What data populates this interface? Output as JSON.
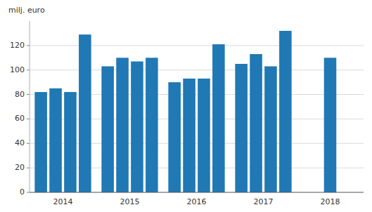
{
  "chart_data": {
    "type": "bar",
    "ylabel": "milj. euro",
    "categories": [
      "2014",
      "2015",
      "2016",
      "2017",
      "2018"
    ],
    "series": [
      {
        "color": "#2078b4",
        "values": [
          82,
          103,
          90,
          105,
          110
        ]
      },
      {
        "color": "#2078b4",
        "values": [
          85,
          110,
          93,
          113,
          null
        ]
      },
      {
        "color": "#2078b4",
        "values": [
          82,
          107,
          93,
          103,
          null
        ]
      },
      {
        "color": "#2078b4",
        "values": [
          129,
          110,
          121,
          132,
          null
        ]
      }
    ],
    "ylim": [
      0,
      140
    ],
    "yticks": [
      0,
      20,
      40,
      60,
      80,
      100,
      120
    ],
    "grid": true
  }
}
